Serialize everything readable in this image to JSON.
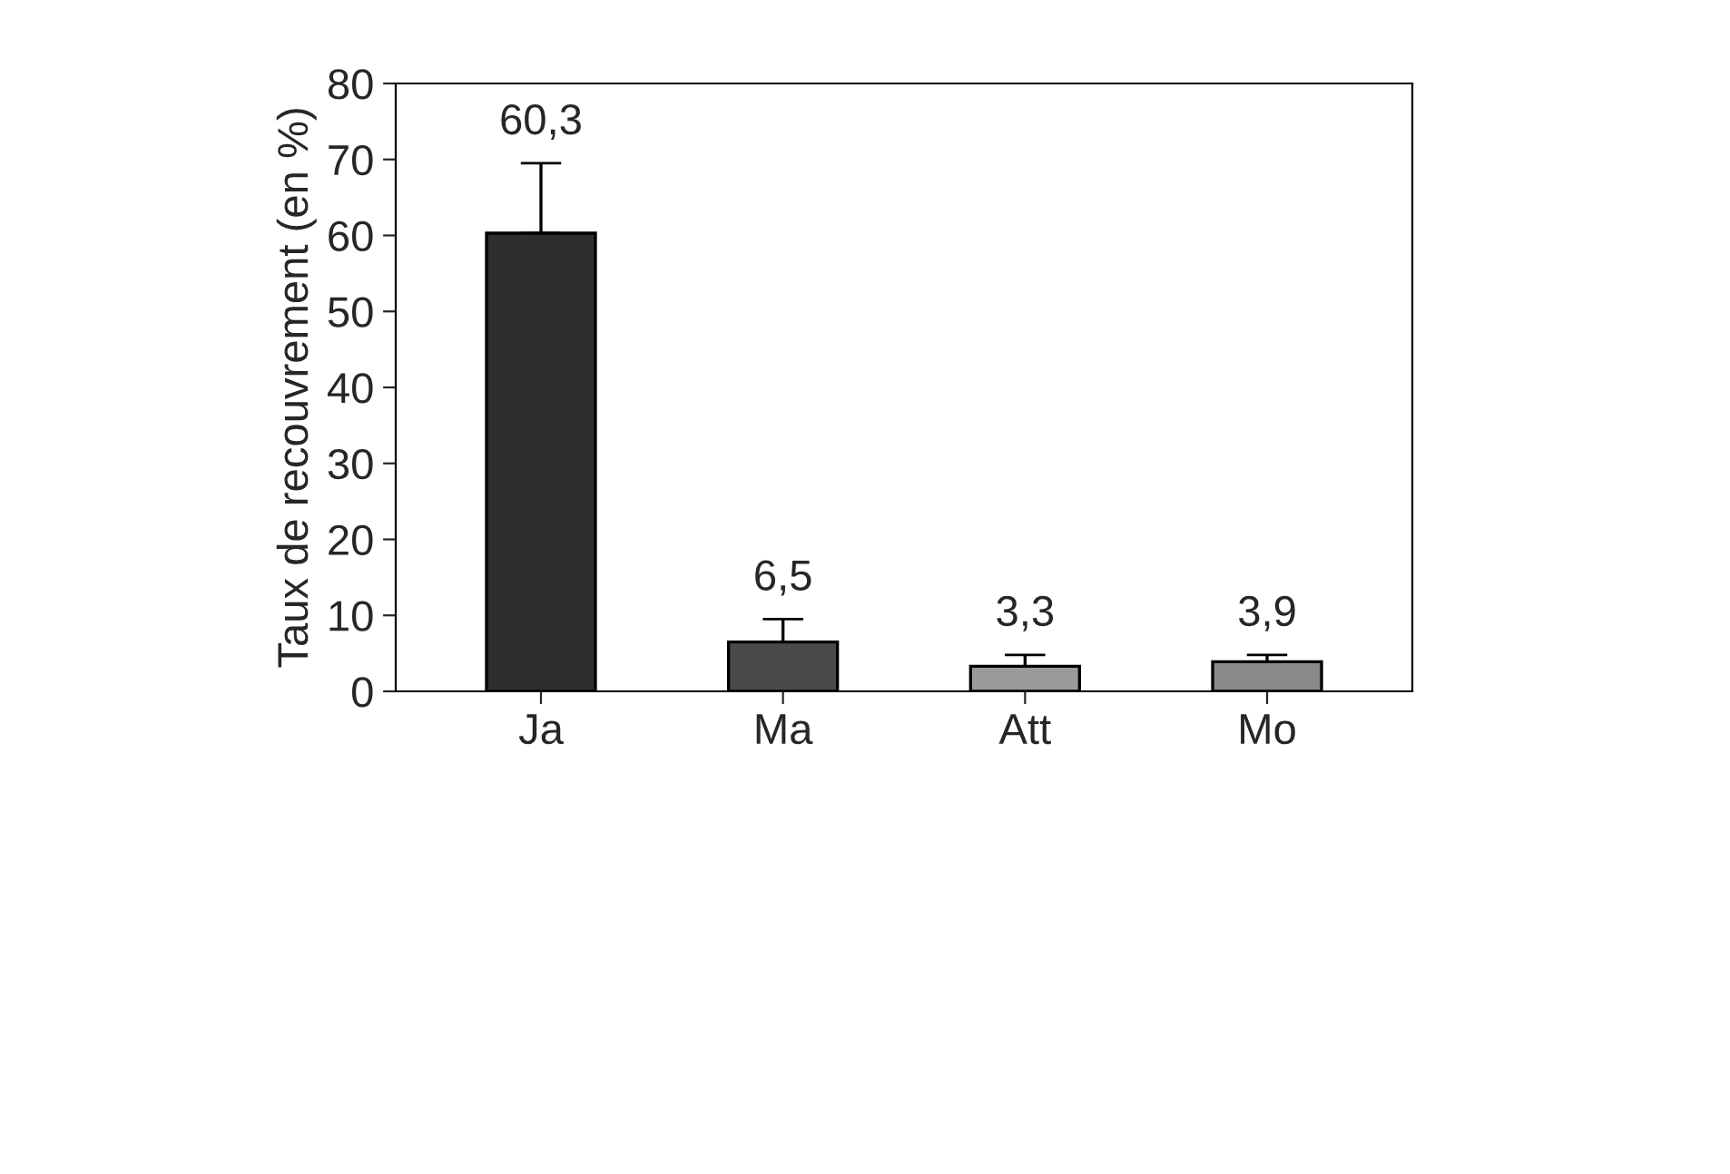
{
  "chart_data": {
    "type": "bar",
    "ylabel": "Taux de recouvrement (en %)",
    "categories": [
      "Ja",
      "Ma",
      "Att",
      "Mo"
    ],
    "values": [
      60.3,
      6.5,
      3.3,
      3.9
    ],
    "value_labels": [
      "60,3",
      "6,5",
      "3,3",
      "3,9"
    ],
    "errors": [
      [
        60.3,
        69.5
      ],
      [
        6.5,
        9.5
      ],
      [
        3.3,
        4.8
      ],
      [
        3.9,
        4.8
      ]
    ],
    "colors": [
      "#2e2e2e",
      "#4a4a4a",
      "#9a9a9a",
      "#8a8a8a"
    ],
    "ylim": [
      0,
      80
    ],
    "yticks": [
      0,
      10,
      20,
      30,
      40,
      50,
      60,
      70,
      80
    ],
    "grid": false,
    "legend": false
  }
}
